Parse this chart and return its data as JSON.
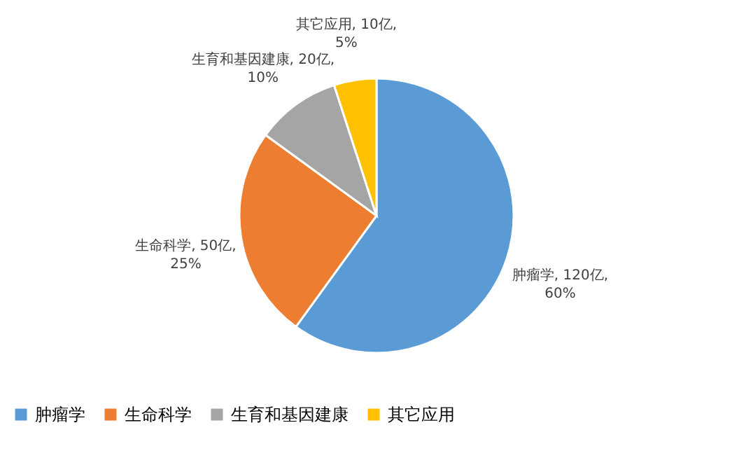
{
  "chart_data": {
    "type": "pie",
    "categories": [
      "肿瘤学",
      "生命科学",
      "生育和基因建康",
      "其它应用"
    ],
    "values": [
      120,
      50,
      20,
      10
    ],
    "colors": [
      "#5b9bd5",
      "#ed7d31",
      "#a5a5a5",
      "#ffc000"
    ],
    "value_labels": [
      "肿瘤学, 120亿, 60%",
      "生命科学, 50亿, 25%",
      "生育和基因建康, 20亿, 10%",
      "其它应用, 10亿, 5%"
    ],
    "legend": "bottom"
  }
}
